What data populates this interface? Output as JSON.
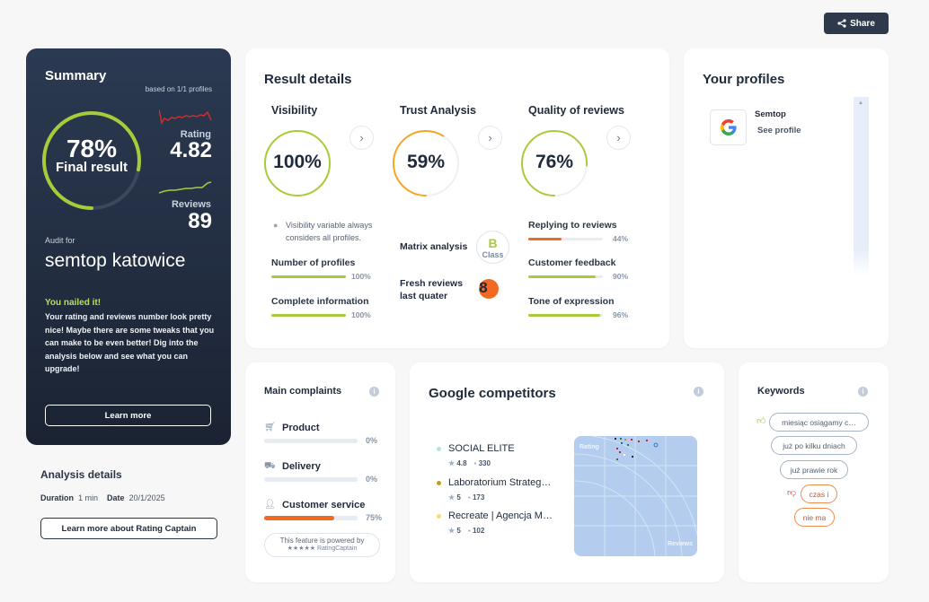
{
  "share": {
    "label": "Share"
  },
  "summary": {
    "title": "Summary",
    "based_on": "based on 1/1 profiles",
    "final_pct": "78%",
    "final_label": "Final result",
    "final_value": 0.78,
    "rating_label": "Rating",
    "rating_value": "4.82",
    "reviews_label": "Reviews",
    "reviews_value": "89",
    "audit_for": "Audit for",
    "company": "semtop katowice",
    "nailed_title": "You nailed it!",
    "nailed_text": "Your rating and reviews number look pretty nice! Maybe there are some tweaks that you can make to be even better! Dig into the analysis below and see what you can upgrade!",
    "learn_more": "Learn more",
    "colors": {
      "accent": "#a8cc39",
      "spark_red": "#d42b2b",
      "spark_green": "#a8cc39"
    }
  },
  "analysis": {
    "title": "Analysis details",
    "duration_label": "Duration",
    "duration_value": "1 min",
    "date_label": "Date",
    "date_value": "20/1/2025",
    "learn_rc": "Learn more about Rating Captain"
  },
  "result": {
    "title": "Result details",
    "visibility": {
      "title": "Visibility",
      "value": "100%",
      "fraction": 1.0,
      "note": "Visibility variable always considers all profiles.",
      "metrics": [
        {
          "label": "Number of profiles",
          "value": "100%",
          "fraction": 1.0
        },
        {
          "label": "Complete information",
          "value": "100%",
          "fraction": 1.0
        }
      ]
    },
    "trust": {
      "title": "Trust Analysis",
      "value": "59%",
      "fraction": 0.59,
      "matrix_label": "Matrix analysis",
      "class_letter": "B",
      "class_word": "Class",
      "fresh_label": "Fresh reviews last quater",
      "fresh_value": "8"
    },
    "quality": {
      "title": "Quality of reviews",
      "value": "76%",
      "fraction": 0.76,
      "metrics": [
        {
          "label": "Replying to reviews",
          "value": "44%",
          "fraction": 0.44,
          "color": "#f26a21"
        },
        {
          "label": "Customer feedback",
          "value": "90%",
          "fraction": 0.9,
          "color": "#a8cc39"
        },
        {
          "label": "Tone of expression",
          "value": "96%",
          "fraction": 0.96,
          "color": "#a8cc39"
        }
      ]
    }
  },
  "profiles": {
    "title": "Your profiles",
    "items": [
      {
        "name": "Semtop",
        "link": "See profile",
        "icon": "google-icon"
      }
    ]
  },
  "complaints": {
    "title": "Main complaints",
    "items": [
      {
        "label": "Product",
        "value": "0%",
        "fraction": 0.0,
        "icon": "basket-icon"
      },
      {
        "label": "Delivery",
        "value": "0%",
        "fraction": 0.0,
        "icon": "truck-icon"
      },
      {
        "label": "Customer service",
        "value": "75%",
        "fraction": 0.75,
        "icon": "person-icon"
      }
    ],
    "powered_1": "This feature is powered by",
    "powered_2": "★★★★★ RatingCaptain"
  },
  "competitors": {
    "title": "Google competitors",
    "items": [
      {
        "name": "SOCIAL ELITE",
        "rating": "4.8",
        "reviews": "330",
        "color": "#b6e6cf"
      },
      {
        "name": "Laboratorium Strateg…",
        "rating": "5",
        "reviews": "173",
        "color": "#c49a1e"
      },
      {
        "name": "Recreate | Agencja M…",
        "rating": "5",
        "reviews": "102",
        "color": "#f5dd7a"
      }
    ],
    "matrix_y_label": "Rating",
    "matrix_x_label": "Reviews"
  },
  "keywords": {
    "title": "Keywords",
    "positive": [
      "miesiąc osiągamy c…",
      "już po kilku dniach",
      "już prawie rok"
    ],
    "negative": [
      "czas i",
      "nie ma"
    ]
  }
}
